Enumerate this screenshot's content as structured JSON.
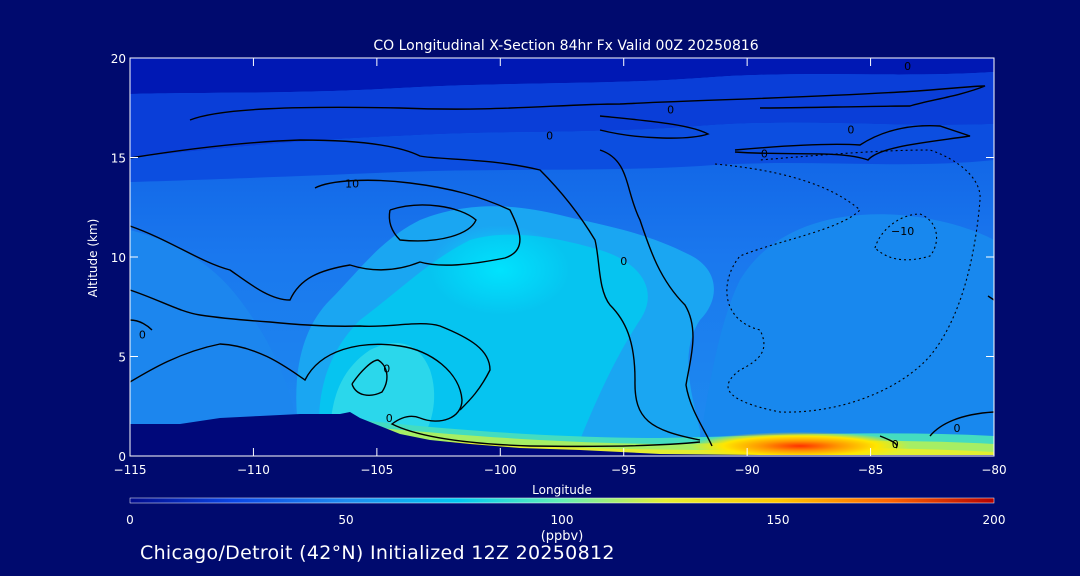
{
  "chart_data": {
    "type": "heatmap",
    "title": "CO Longitudinal X-Section 84hr  Fx Valid 00Z 20250816",
    "xlabel": "Longitude",
    "ylabel": "Altitude (km)",
    "xlim": [
      -115,
      -80
    ],
    "ylim": [
      0,
      20
    ],
    "x_ticks": [
      -115,
      -110,
      -105,
      -100,
      -95,
      -90,
      -85,
      -80
    ],
    "x_tick_labels": [
      "−115",
      "−110",
      "−105",
      "−100",
      "−95",
      "−90",
      "−85",
      "−80"
    ],
    "y_ticks": [
      0,
      5,
      10,
      15,
      20
    ],
    "y_tick_labels": [
      "0",
      "5",
      "10",
      "15",
      "20"
    ],
    "colorbar": {
      "label": "(ppbv)",
      "min": 0,
      "max": 200,
      "ticks": [
        0,
        50,
        100,
        150,
        200
      ],
      "tick_labels": [
        "0",
        "50",
        "100",
        "150",
        "200"
      ],
      "colors": [
        "#000a8c",
        "#0a46e6",
        "#1e8cf0",
        "#00c8f0",
        "#64f0b4",
        "#e6f032",
        "#ffc800",
        "#ff6400",
        "#b40000"
      ]
    },
    "contour_labels": [
      {
        "text": "0",
        "lon": -98,
        "alt": 16.1
      },
      {
        "text": "0",
        "lon": -93.1,
        "alt": 17.4
      },
      {
        "text": "0",
        "lon": -83.5,
        "alt": 19.6
      },
      {
        "text": "0",
        "lon": -85.8,
        "alt": 16.4
      },
      {
        "text": "0",
        "lon": -89.3,
        "alt": 15.2
      },
      {
        "text": "10",
        "lon": -106,
        "alt": 13.7
      },
      {
        "text": "0",
        "lon": -95,
        "alt": 9.8
      },
      {
        "text": "−10",
        "lon": -83.7,
        "alt": 11.3
      },
      {
        "text": "0",
        "lon": -114.5,
        "alt": 6.1
      },
      {
        "text": "0",
        "lon": -104.6,
        "alt": 4.4
      },
      {
        "text": "0",
        "lon": -104.5,
        "alt": 1.9
      },
      {
        "text": "0",
        "lon": -84,
        "alt": 0.6
      },
      {
        "text": "0",
        "lon": -81.5,
        "alt": 1.4
      }
    ],
    "annotations": [
      "Chicago/Detroit (42°N) Initialized 12Z 20250812"
    ]
  }
}
